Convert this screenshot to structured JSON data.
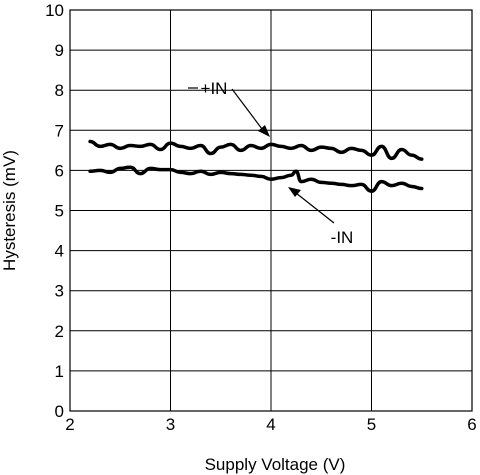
{
  "chart_data": {
    "type": "line",
    "title": "",
    "xlabel": "Supply Voltage (V)",
    "ylabel": "Hysteresis (mV)",
    "xlim": [
      2,
      6
    ],
    "ylim": [
      0,
      10
    ],
    "xticks": [
      "2",
      "3",
      "4",
      "5",
      "6"
    ],
    "yticks": [
      "0",
      "1",
      "2",
      "3",
      "4",
      "5",
      "6",
      "7",
      "8",
      "9",
      "10"
    ],
    "grid": true,
    "legend": "none",
    "series": [
      {
        "name": "+IN",
        "color": "#000000",
        "x": [
          2.2,
          2.3,
          2.4,
          2.5,
          2.6,
          2.7,
          2.8,
          2.9,
          3.0,
          3.1,
          3.2,
          3.3,
          3.4,
          3.5,
          3.6,
          3.7,
          3.8,
          3.9,
          4.0,
          4.1,
          4.2,
          4.3,
          4.4,
          4.5,
          4.6,
          4.7,
          4.8,
          4.9,
          5.0,
          5.1,
          5.2,
          5.3,
          5.4,
          5.5
        ],
        "y": [
          6.72,
          6.6,
          6.65,
          6.55,
          6.62,
          6.6,
          6.65,
          6.52,
          6.68,
          6.6,
          6.55,
          6.62,
          6.42,
          6.58,
          6.65,
          6.5,
          6.62,
          6.55,
          6.65,
          6.6,
          6.55,
          6.62,
          6.5,
          6.58,
          6.55,
          6.45,
          6.55,
          6.5,
          6.38,
          6.6,
          6.3,
          6.52,
          6.38,
          6.28
        ]
      },
      {
        "name": "-IN",
        "color": "#000000",
        "x": [
          2.2,
          2.3,
          2.4,
          2.5,
          2.6,
          2.7,
          2.8,
          2.9,
          3.0,
          3.1,
          3.2,
          3.3,
          3.4,
          3.5,
          3.6,
          3.7,
          3.8,
          3.9,
          4.0,
          4.1,
          4.2,
          4.25,
          4.3,
          4.4,
          4.5,
          4.6,
          4.7,
          4.8,
          4.9,
          5.0,
          5.1,
          5.2,
          5.3,
          5.4,
          5.5
        ],
        "y": [
          5.98,
          6.0,
          5.95,
          6.05,
          6.08,
          5.92,
          6.05,
          6.02,
          6.02,
          5.95,
          5.92,
          5.98,
          5.9,
          5.95,
          5.92,
          5.9,
          5.88,
          5.85,
          5.78,
          5.82,
          5.88,
          5.98,
          5.72,
          5.78,
          5.7,
          5.68,
          5.65,
          5.62,
          5.65,
          5.48,
          5.72,
          5.62,
          5.68,
          5.6,
          5.55
        ]
      }
    ],
    "annotations": [
      {
        "text": "+IN",
        "series": "+IN"
      },
      {
        "text": "-IN",
        "series": "-IN"
      }
    ]
  }
}
